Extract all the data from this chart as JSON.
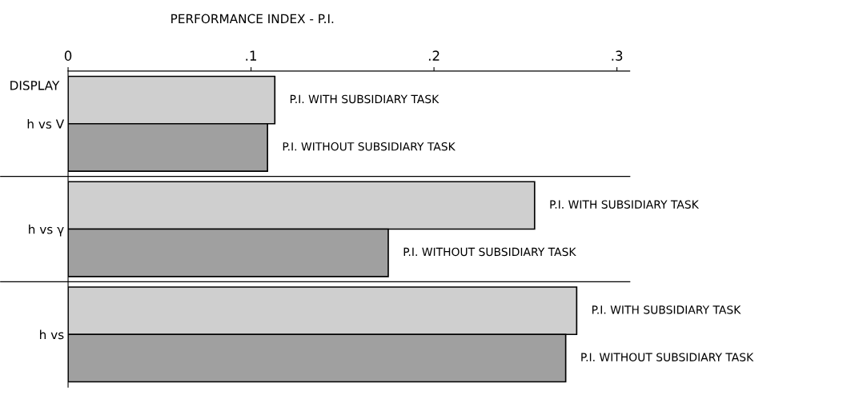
{
  "chart_data": {
    "type": "bar",
    "orientation": "horizontal",
    "title": "PERFORMANCE INDEX - P.I.",
    "ylabel": "DISPLAY",
    "categories": [
      "h vs V",
      "h vs γ",
      "h vs"
    ],
    "series": [
      {
        "name": "P.I. WITH SUBSIDIARY TASK",
        "color": "#cfcfcf",
        "values": [
          0.113,
          0.255,
          0.278
        ]
      },
      {
        "name": "P.I. WITHOUT SUBSIDIARY TASK",
        "color": "#a0a0a0",
        "values": [
          0.109,
          0.175,
          0.272
        ]
      }
    ],
    "xlim": [
      0,
      0.307
    ],
    "xticks": [
      {
        "value": 0,
        "label": "0"
      },
      {
        "value": 0.1,
        "label": ".1"
      },
      {
        "value": 0.2,
        "label": ".2"
      },
      {
        "value": 0.3,
        "label": ".3"
      }
    ],
    "grid": false,
    "legend": false
  }
}
